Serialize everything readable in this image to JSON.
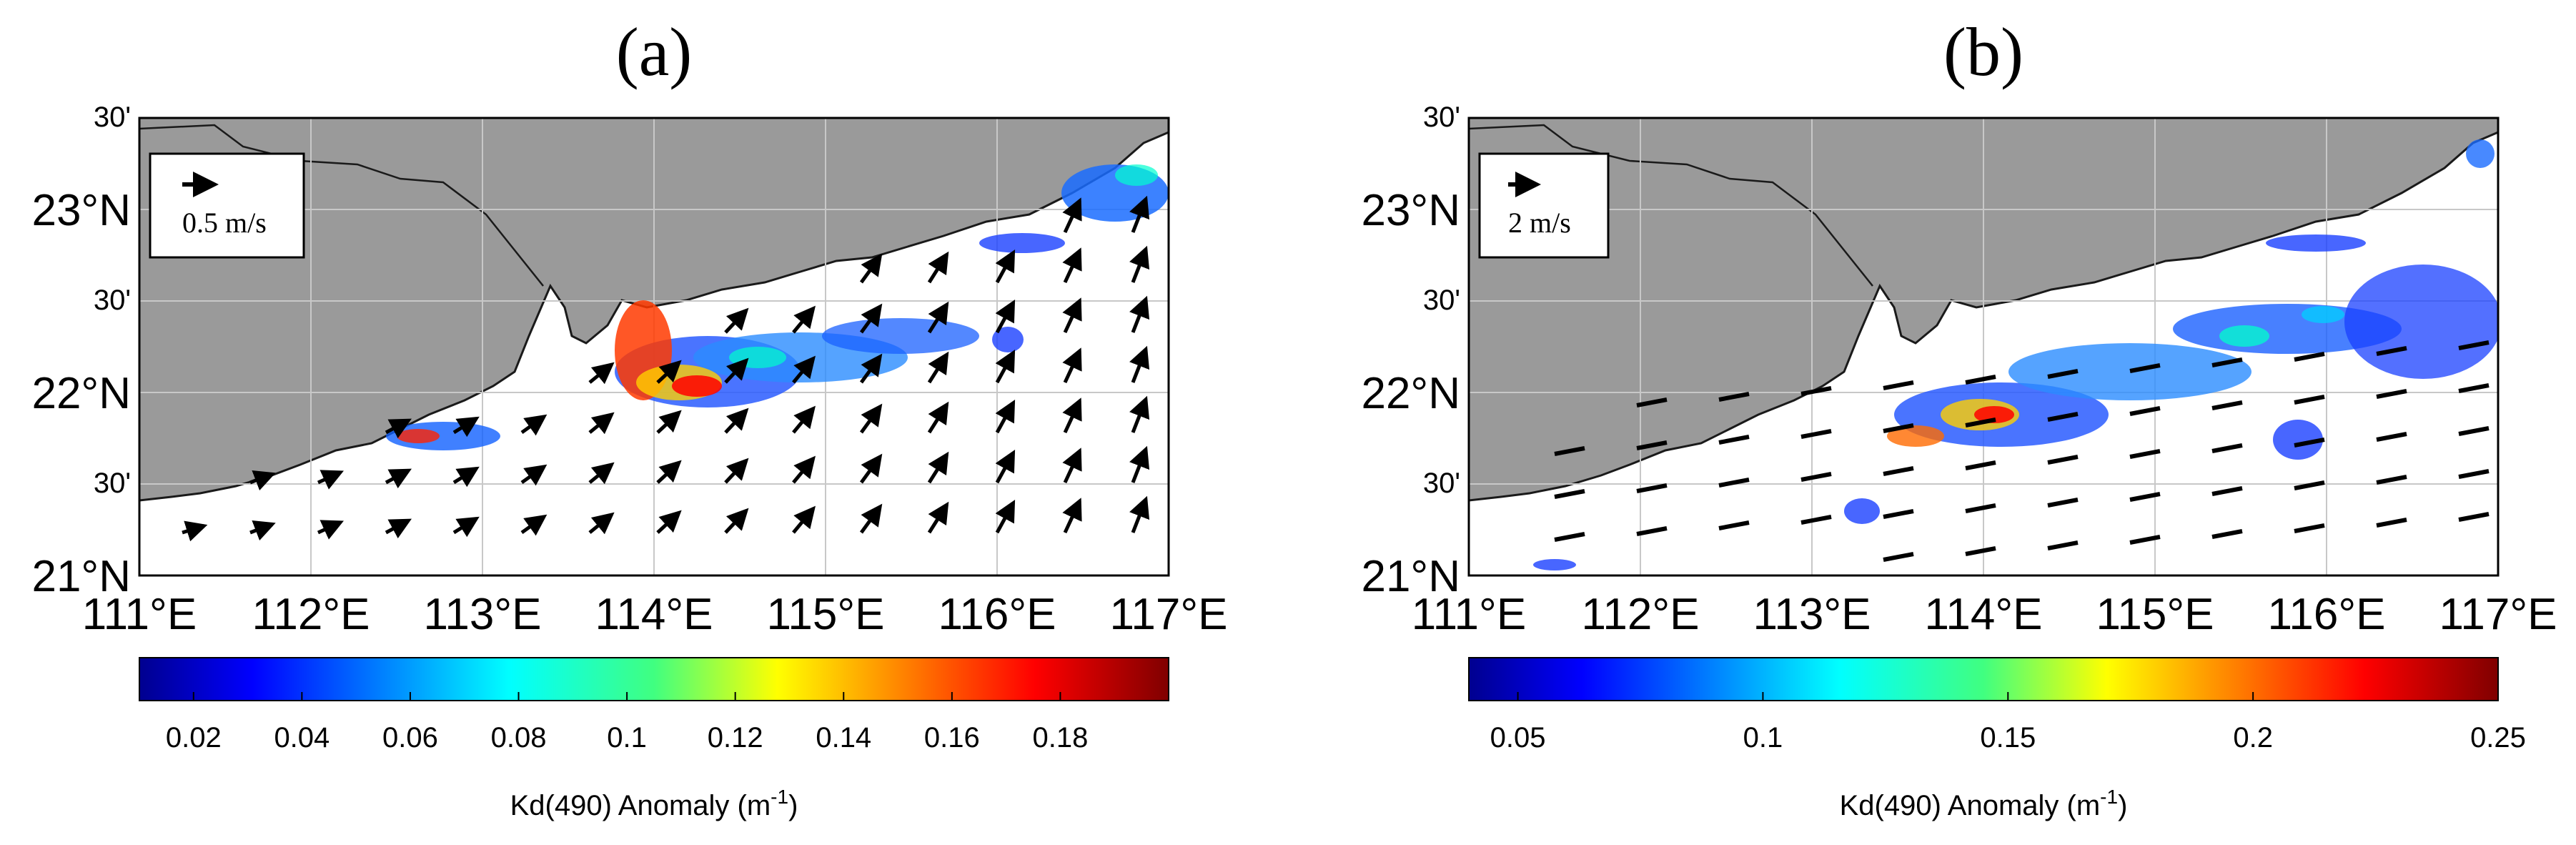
{
  "panels": [
    {
      "id": "a",
      "label": "(a)",
      "lat_ticks": [
        "30'",
        "23°N",
        "30'",
        "22°N",
        "30'",
        "21°N"
      ],
      "lon_ticks": [
        "111°E",
        "112°E",
        "113°E",
        "114°E",
        "115°E",
        "116°E",
        "117°E"
      ],
      "lat_values": [
        23.5,
        23.0,
        22.5,
        22.0,
        21.5,
        21.0
      ],
      "lon_values": [
        111,
        112,
        113,
        114,
        115,
        116,
        117
      ],
      "extent": {
        "lon": [
          111,
          117
        ],
        "lat": [
          21,
          23.5
        ]
      },
      "vector_scale_label": "0.5 m/s",
      "colorbar": {
        "label": "Kd(490) Anomaly (m",
        "label_sup": "-1",
        "label_close": ")",
        "tick_labels": [
          "0.02",
          "0.04",
          "0.06",
          "0.08",
          "0.1",
          "0.12",
          "0.14",
          "0.16",
          "0.18"
        ],
        "tick_values": [
          0.02,
          0.04,
          0.06,
          0.08,
          0.1,
          0.12,
          0.14,
          0.16,
          0.18
        ],
        "range": [
          0.01,
          0.2
        ],
        "colormap": "jet"
      }
    },
    {
      "id": "b",
      "label": "(b)",
      "lat_ticks": [
        "30'",
        "23°N",
        "30'",
        "22°N",
        "30'",
        "21°N"
      ],
      "lon_ticks": [
        "111°E",
        "112°E",
        "113°E",
        "114°E",
        "115°E",
        "116°E",
        "117°E"
      ],
      "lat_values": [
        23.5,
        23.0,
        22.5,
        22.0,
        21.5,
        21.0
      ],
      "lon_values": [
        111,
        112,
        113,
        114,
        115,
        116,
        117
      ],
      "extent": {
        "lon": [
          111,
          117
        ],
        "lat": [
          21,
          23.5
        ]
      },
      "vector_scale_label": "2 m/s",
      "colorbar": {
        "label": "Kd(490) Anomaly (m",
        "label_sup": "-1",
        "label_close": ")",
        "tick_labels": [
          "0.05",
          "0.1",
          "0.15",
          "0.2",
          "0.25"
        ],
        "tick_values": [
          0.05,
          0.1,
          0.15,
          0.2,
          0.25
        ],
        "range": [
          0.04,
          0.25
        ],
        "colormap": "jet"
      }
    }
  ],
  "colors": {
    "land": "#9a9a9a",
    "sea": "#ffffff",
    "coast": "#1a1a1a",
    "grid": "#c8c8c8",
    "arrow": "#000000"
  }
}
